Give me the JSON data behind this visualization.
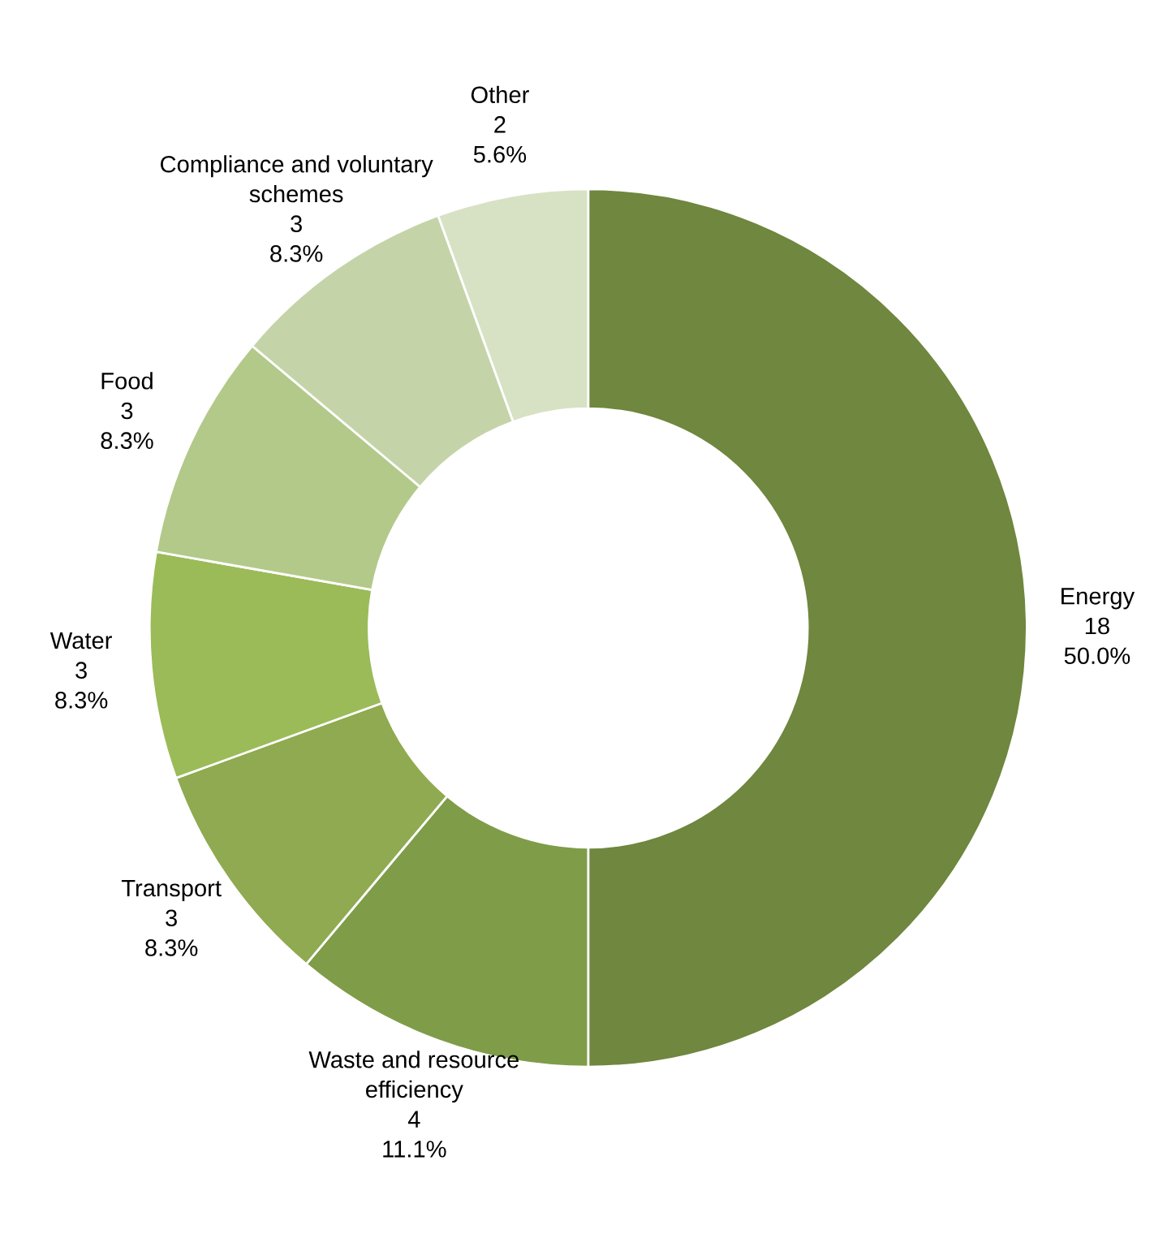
{
  "chart_data": {
    "type": "donut",
    "categories": [
      "Energy",
      "Waste and resource\nefficiency",
      "Transport",
      "Water",
      "Food",
      "Compliance and voluntary\nschemes",
      "Other"
    ],
    "values": [
      18,
      4,
      3,
      3,
      3,
      3,
      2
    ],
    "colors": [
      "#6f873e",
      "#7f9c48",
      "#8faa50",
      "#9bbb59",
      "#b3c98a",
      "#c5d4a8",
      "#d7e2c5"
    ],
    "value_labels": [
      "18\n50.0%",
      "4\n11.1%",
      "3\n8.3%",
      "3\n8.3%",
      "3\n8.3%",
      "3\n8.3%",
      "2\n5.6%"
    ],
    "legend": false
  }
}
